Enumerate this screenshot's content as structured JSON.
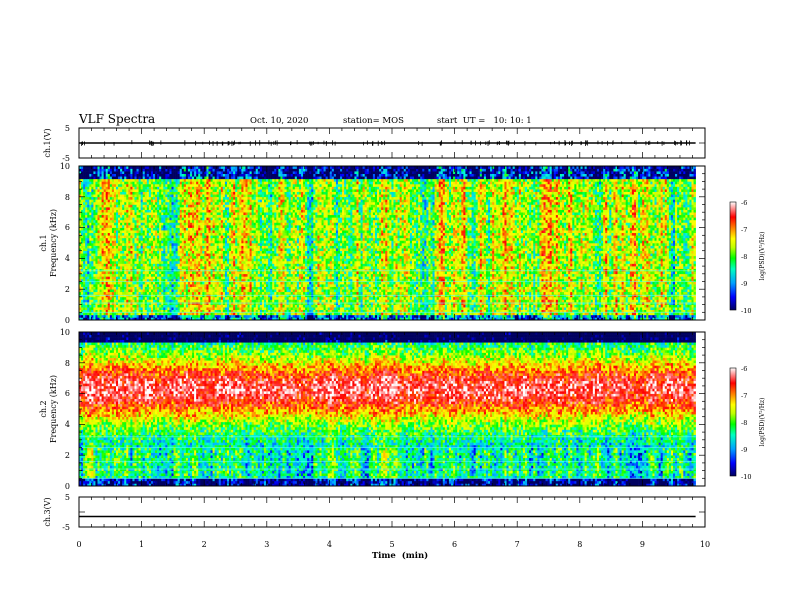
{
  "header": {
    "title": "VLF Spectra",
    "date": "Oct. 10, 2020",
    "station": "station= MOS",
    "start": "start  UT =   10: 10: 1"
  },
  "chart_data": [
    {
      "type": "line",
      "panel": "ch1-waveform",
      "ylabel": "ch.1(V)",
      "ylim": [
        -5,
        5
      ],
      "yticks": [
        5,
        -5
      ],
      "xlim": [
        0,
        10
      ],
      "series": [
        {
          "x": [
            0,
            9.85
          ],
          "values": [
            0,
            0
          ]
        }
      ]
    },
    {
      "type": "heatmap",
      "panel": "ch1-spectrogram",
      "ylabel_line1": "ch.1",
      "ylabel_line2": "Frequency (kHz)",
      "ylim": [
        0,
        10
      ],
      "yticks": [
        "0",
        "2",
        "4",
        "6",
        "8",
        "10"
      ],
      "xlim": [
        0,
        10
      ],
      "data_extent_min": [
        0,
        9.85
      ],
      "colorbar": {
        "label": "log(PSD)(V²/Hz)",
        "range": [
          -10,
          -6
        ],
        "ticks": [
          "-6",
          "-7",
          "-8",
          "-9",
          "-10"
        ]
      }
    },
    {
      "type": "heatmap",
      "panel": "ch2-spectrogram",
      "ylabel_line1": "ch.2",
      "ylabel_line2": "Frequency (kHz)",
      "ylim": [
        0,
        10
      ],
      "yticks": [
        "0",
        "2",
        "4",
        "6",
        "8",
        "10"
      ],
      "xlim": [
        0,
        10
      ],
      "data_extent_min": [
        0,
        9.85
      ],
      "colorbar": {
        "label": "log(PSD)(V²/Hz)",
        "range": [
          -10,
          -6
        ],
        "ticks": [
          "-6",
          "-7",
          "-8",
          "-9",
          "-10"
        ]
      }
    },
    {
      "type": "line",
      "panel": "ch3-waveform",
      "ylabel": "ch.3(V)",
      "ylim": [
        -5,
        5
      ],
      "yticks": [
        5,
        -5
      ],
      "xlim": [
        0,
        10
      ],
      "xlabel": "Time  (min)",
      "xticks": [
        "0",
        "1",
        "2",
        "3",
        "4",
        "5",
        "6",
        "7",
        "8",
        "9",
        "10"
      ],
      "series": [
        {
          "x": [
            0,
            9.85
          ],
          "values": [
            -1.5,
            -1.5
          ]
        }
      ]
    }
  ],
  "colors": {
    "colormap": [
      "#000060",
      "#0000ff",
      "#00b0ff",
      "#00ffd0",
      "#00ff00",
      "#d0ff00",
      "#ffff00",
      "#ff8000",
      "#ff0000",
      "#ff6060",
      "#ffffff"
    ]
  }
}
